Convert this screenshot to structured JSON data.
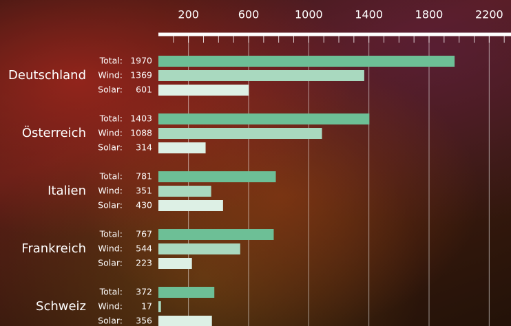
{
  "chart_data": {
    "type": "bar",
    "orientation": "horizontal",
    "categories": [
      "Deutschland",
      "Österreich",
      "Italien",
      "Frankreich",
      "Schweiz"
    ],
    "series": [
      {
        "name": "Total:",
        "color": "#6dbf96",
        "values": [
          1970,
          1403,
          781,
          767,
          372
        ]
      },
      {
        "name": "Wind:",
        "color": "#a9d9bf",
        "values": [
          1369,
          1088,
          351,
          544,
          17
        ]
      },
      {
        "name": "Solar:",
        "color": "#ddf0e5",
        "values": [
          601,
          314,
          430,
          223,
          356
        ]
      }
    ],
    "xlim": [
      0,
      2345
    ],
    "xticks": [
      200,
      600,
      1000,
      1400,
      1800,
      2200
    ],
    "xminorticks": [
      100,
      200,
      300,
      400,
      500,
      600,
      700,
      800,
      900,
      1000,
      1100,
      1200,
      1300,
      1400,
      1500,
      1600,
      1700,
      1800,
      1900,
      2000,
      2100,
      2200,
      2300
    ],
    "grid": true
  }
}
